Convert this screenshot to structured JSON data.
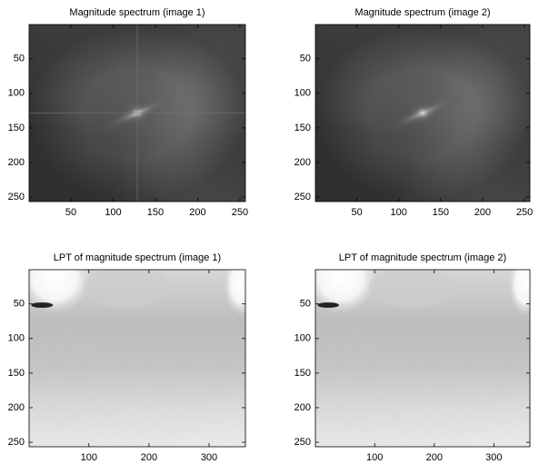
{
  "chart_data": [
    {
      "type": "image",
      "title": "Magnitude spectrum (image 1)",
      "xlim": [
        0.5,
        256.5
      ],
      "ylim": [
        256.5,
        0.5
      ],
      "xticks": [
        50,
        100,
        150,
        200,
        250
      ],
      "yticks": [
        50,
        100,
        150,
        200,
        250
      ]
    },
    {
      "type": "image",
      "title": "Magnitude spectrum (image 2)",
      "xlim": [
        0.5,
        256.5
      ],
      "ylim": [
        256.5,
        0.5
      ],
      "xticks": [
        50,
        100,
        150,
        200,
        250
      ],
      "yticks": [
        50,
        100,
        150,
        200,
        250
      ]
    },
    {
      "type": "image",
      "title": "LPT of magnitude spectrum (image 1)",
      "xlim": [
        0.5,
        360.5
      ],
      "ylim": [
        256.5,
        0.5
      ],
      "xticks": [
        100,
        200,
        300
      ],
      "yticks": [
        50,
        100,
        150,
        200,
        250
      ]
    },
    {
      "type": "image",
      "title": "LPT of magnitude spectrum (image 2)",
      "xlim": [
        0.5,
        360.5
      ],
      "ylim": [
        256.5,
        0.5
      ],
      "xticks": [
        100,
        200,
        300
      ],
      "yticks": [
        50,
        100,
        150,
        200,
        250
      ]
    }
  ]
}
